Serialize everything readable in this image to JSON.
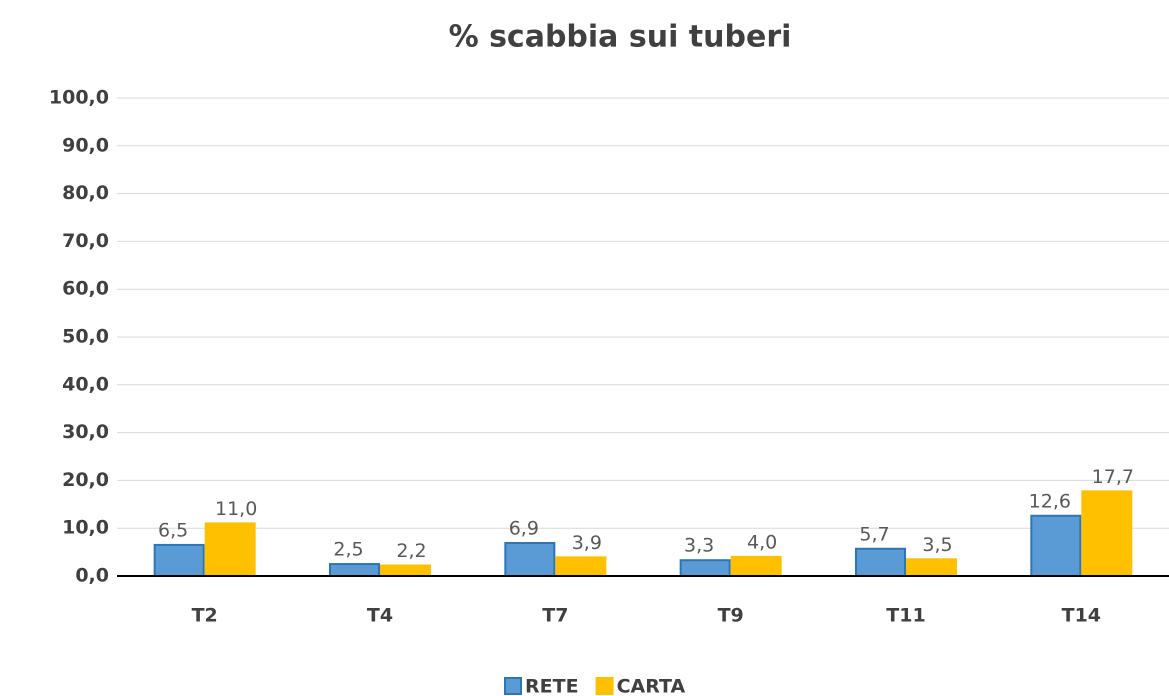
{
  "chart_data": {
    "type": "bar",
    "title": "% scabbia sui tuberi",
    "categories": [
      "T2",
      "T4",
      "T7",
      "T9",
      "T11",
      "T14"
    ],
    "series": [
      {
        "name": "RETE",
        "color": "#5b9bd5",
        "values": [
          6.5,
          2.5,
          6.9,
          3.3,
          5.7,
          12.6
        ],
        "value_labels": [
          "6,5",
          "2,5",
          "6,9",
          "3,3",
          "5,7",
          "12,6"
        ]
      },
      {
        "name": "CARTA",
        "color": "#ffc000",
        "values": [
          11.0,
          2.2,
          3.9,
          4.0,
          3.5,
          17.7
        ],
        "value_labels": [
          "11,0",
          "2,2",
          "3,9",
          "4,0",
          "3,5",
          "17,7"
        ]
      }
    ],
    "ylim": [
      0,
      100
    ],
    "yticks": [
      {
        "value": 0,
        "label": "0,0"
      },
      {
        "value": 10,
        "label": "10,0"
      },
      {
        "value": 20,
        "label": "20,0"
      },
      {
        "value": 30,
        "label": "30,0"
      },
      {
        "value": 40,
        "label": "40,0"
      },
      {
        "value": 50,
        "label": "50,0"
      },
      {
        "value": 60,
        "label": "60,0"
      },
      {
        "value": 70,
        "label": "70,0"
      },
      {
        "value": 80,
        "label": "80,0"
      },
      {
        "value": 90,
        "label": "90,0"
      },
      {
        "value": 100,
        "label": "100,0"
      }
    ],
    "grid": true,
    "legend": "bottom"
  }
}
